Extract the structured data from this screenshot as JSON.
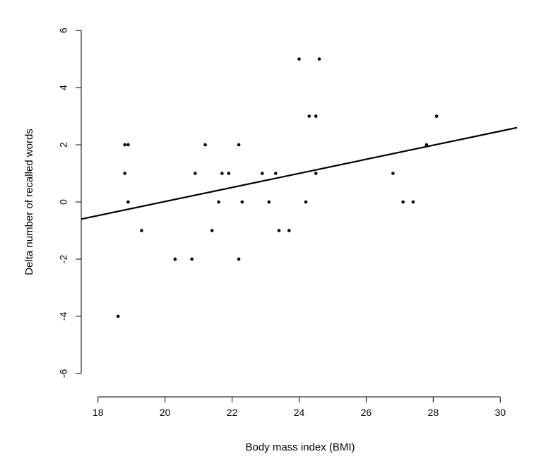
{
  "chart_data": {
    "type": "scatter",
    "title": "",
    "xlabel": "Body mass index (BMI)",
    "ylabel": "Delta number of recalled words",
    "xlim": [
      17.5,
      30.5
    ],
    "ylim": [
      -6.3,
      6.3
    ],
    "x_ticks": [
      18,
      20,
      22,
      24,
      26,
      28,
      30
    ],
    "y_ticks": [
      -6,
      -4,
      -2,
      0,
      2,
      4,
      6
    ],
    "grid": false,
    "points": [
      {
        "x": 18.6,
        "y": -4
      },
      {
        "x": 18.8,
        "y": 1
      },
      {
        "x": 18.8,
        "y": 2
      },
      {
        "x": 18.9,
        "y": 2
      },
      {
        "x": 18.9,
        "y": 0
      },
      {
        "x": 19.3,
        "y": -1
      },
      {
        "x": 20.3,
        "y": -2
      },
      {
        "x": 20.8,
        "y": -2
      },
      {
        "x": 20.9,
        "y": 1
      },
      {
        "x": 21.2,
        "y": 2
      },
      {
        "x": 21.4,
        "y": -1
      },
      {
        "x": 21.6,
        "y": 0
      },
      {
        "x": 21.7,
        "y": 1
      },
      {
        "x": 21.9,
        "y": 1
      },
      {
        "x": 22.2,
        "y": 2
      },
      {
        "x": 22.2,
        "y": -2
      },
      {
        "x": 22.3,
        "y": 0
      },
      {
        "x": 22.9,
        "y": 1
      },
      {
        "x": 23.1,
        "y": 0
      },
      {
        "x": 23.3,
        "y": 1
      },
      {
        "x": 23.4,
        "y": -1
      },
      {
        "x": 23.7,
        "y": -1
      },
      {
        "x": 24.0,
        "y": 5
      },
      {
        "x": 24.2,
        "y": 0
      },
      {
        "x": 24.3,
        "y": 3
      },
      {
        "x": 24.5,
        "y": 3
      },
      {
        "x": 24.5,
        "y": 1
      },
      {
        "x": 24.6,
        "y": 5
      },
      {
        "x": 26.8,
        "y": 1
      },
      {
        "x": 27.1,
        "y": 0
      },
      {
        "x": 27.4,
        "y": 0
      },
      {
        "x": 27.8,
        "y": 2
      },
      {
        "x": 28.1,
        "y": 3
      }
    ],
    "regression_line": {
      "x": [
        17.5,
        30.5
      ],
      "y": [
        -0.6,
        2.6
      ]
    }
  }
}
